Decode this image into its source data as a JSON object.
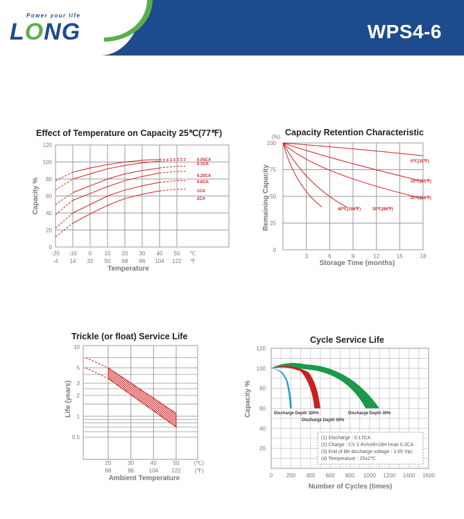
{
  "header": {
    "tagline": "Power your life",
    "logo_left": "L",
    "logo_o": "O",
    "logo_rest": "NG",
    "model": "WPS4-6"
  },
  "colors": {
    "brand_blue": "#1d4c8e",
    "brand_green": "#5cae4a",
    "curve_red": "#cc1f1f",
    "grid": "#999999"
  },
  "chart_data": [
    {
      "type": "line",
      "title": "Effect of Temperature on Capacity  25℃(77℉)",
      "ylabel": "Capacity %",
      "xlabel": "Temperature",
      "x_ticks_c": [
        "-20",
        "-10",
        "0",
        "10",
        "20",
        "30",
        "40",
        "50",
        "℃"
      ],
      "x_ticks_f": [
        "-4",
        "14",
        "32",
        "50",
        "68",
        "86",
        "104",
        "122",
        "℉"
      ],
      "y_ticks": [
        "0",
        "20",
        "40",
        "60",
        "80",
        "100",
        "120"
      ],
      "xlim": [
        -20,
        50
      ],
      "ylim": [
        0,
        120
      ],
      "series": [
        {
          "name": "0.05CA",
          "x": [
            -20,
            -10,
            0,
            10,
            20,
            30,
            40,
            50,
            55
          ],
          "y": [
            78,
            88,
            93,
            97,
            100,
            102,
            103,
            104,
            104
          ]
        },
        {
          "name": "0.1CA",
          "x": [
            -20,
            -10,
            0,
            10,
            20,
            30,
            40,
            50,
            55
          ],
          "y": [
            67,
            80,
            86,
            92,
            96,
            99,
            101,
            102,
            102
          ]
        },
        {
          "name": "0.25CA",
          "x": [
            -20,
            -10,
            0,
            10,
            20,
            30,
            40,
            50,
            55
          ],
          "y": [
            50,
            64,
            72,
            80,
            86,
            90,
            93,
            95,
            95
          ]
        },
        {
          "name": "0.6CA",
          "x": [
            -20,
            -10,
            0,
            10,
            20,
            30,
            40,
            50,
            55
          ],
          "y": [
            38,
            55,
            63,
            71,
            78,
            83,
            87,
            89,
            89
          ]
        },
        {
          "name": "1CA",
          "x": [
            -20,
            -10,
            0,
            10,
            20,
            30,
            40,
            50,
            55
          ],
          "y": [
            22,
            40,
            50,
            60,
            67,
            72,
            76,
            78,
            78
          ]
        },
        {
          "name": "2CA",
          "x": [
            -20,
            -10,
            0,
            10,
            20,
            30,
            40,
            50,
            55
          ],
          "y": [
            12,
            28,
            39,
            49,
            57,
            62,
            66,
            68,
            68
          ]
        }
      ]
    },
    {
      "type": "line",
      "title": "Capacity Retention Characteristic",
      "ylabel": "Remaining Capacity",
      "xlabel": "Storage Time (months)",
      "y_unit": "(%)",
      "x_ticks": [
        "3",
        "6",
        "9",
        "12",
        "15",
        "18"
      ],
      "y_ticks": [
        "0",
        "25",
        "50",
        "75",
        "100"
      ],
      "xlim": [
        0,
        18
      ],
      "ylim": [
        0,
        100
      ],
      "series": [
        {
          "name": "0℃(32℉)",
          "x": [
            0,
            18
          ],
          "y": [
            100,
            88
          ]
        },
        {
          "name": "10℃(50℉)",
          "x": [
            0,
            18
          ],
          "y": [
            100,
            64
          ]
        },
        {
          "name": "20℃(68℉)",
          "x": [
            0,
            18
          ],
          "y": [
            100,
            48
          ]
        },
        {
          "name": "30℃(86℉)",
          "x": [
            0,
            8
          ],
          "y": [
            100,
            40
          ]
        },
        {
          "name": "40℃(104℉)",
          "x": [
            0,
            5
          ],
          "y": [
            100,
            40
          ]
        }
      ]
    },
    {
      "type": "area",
      "title": "Trickle (or float) Service Life",
      "ylabel": "Life (years)",
      "xlabel": "Ambient Temperature",
      "x_ticks_c": [
        "20",
        "30",
        "40",
        "50",
        "(℃)"
      ],
      "x_ticks_f": [
        "68",
        "86",
        "104",
        "122",
        "(℉)"
      ],
      "y_ticks": [
        "10",
        "5",
        "3",
        "2",
        "1",
        "0.5"
      ],
      "y_scale": "log",
      "xlim": [
        10,
        55
      ],
      "ylim": [
        0.3,
        10
      ],
      "series": [
        {
          "name": "upper",
          "x": [
            10,
            20,
            50
          ],
          "y": [
            7,
            5,
            1.1
          ]
        },
        {
          "name": "lower",
          "x": [
            10,
            20,
            50
          ],
          "y": [
            5,
            3.5,
            0.7
          ]
        }
      ]
    },
    {
      "type": "area",
      "title": "Cycle Service Life",
      "ylabel": "Capacity %",
      "xlabel": "Number of Cycles (times)",
      "x_ticks": [
        "0",
        "200",
        "400",
        "600",
        "800",
        "1000",
        "1200",
        "1400",
        "1600"
      ],
      "y_ticks": [
        "20",
        "40",
        "60",
        "80",
        "100",
        "120"
      ],
      "xlim": [
        0,
        1600
      ],
      "ylim": [
        0,
        120
      ],
      "series": [
        {
          "name": "Discharge Depth 100%",
          "color": "#1d9bd6",
          "end_cycles": 200
        },
        {
          "name": "Discharge Depth 50%",
          "color": "#cc1f1f",
          "end_cycles": 500
        },
        {
          "name": "Discharge Depth 30%",
          "color": "#1a9a4a",
          "end_cycles": 1100
        }
      ],
      "notes": [
        "(1) Discharge : 0.17CA",
        "(2) Charge : CV 2.4V/cell×16H Imax 0.3CA",
        "(3) End of life discharge voltage : 1.65 Vpc",
        "(4) Temperature : 25±2℃"
      ]
    }
  ]
}
